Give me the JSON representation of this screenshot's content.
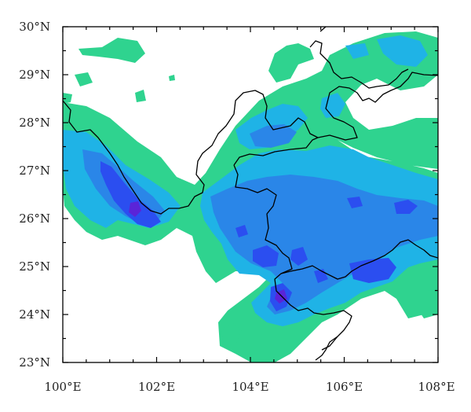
{
  "map": {
    "lon_range": [
      100,
      108
    ],
    "lat_range": [
      23,
      30
    ],
    "x_tick_labels": [
      "100°E",
      "102°E",
      "104°E",
      "106°E",
      "108°E"
    ],
    "y_tick_labels": [
      "23°N",
      "24°N",
      "25°N",
      "26°N",
      "27°N",
      "28°N",
      "29°N",
      "30°N"
    ],
    "colors": {
      "level1": "#2fd38f",
      "level2": "#1fb3e6",
      "level3": "#2a86e8",
      "level4": "#2b4ef0",
      "level5": "#5a24d8",
      "border": "#000000"
    }
  }
}
